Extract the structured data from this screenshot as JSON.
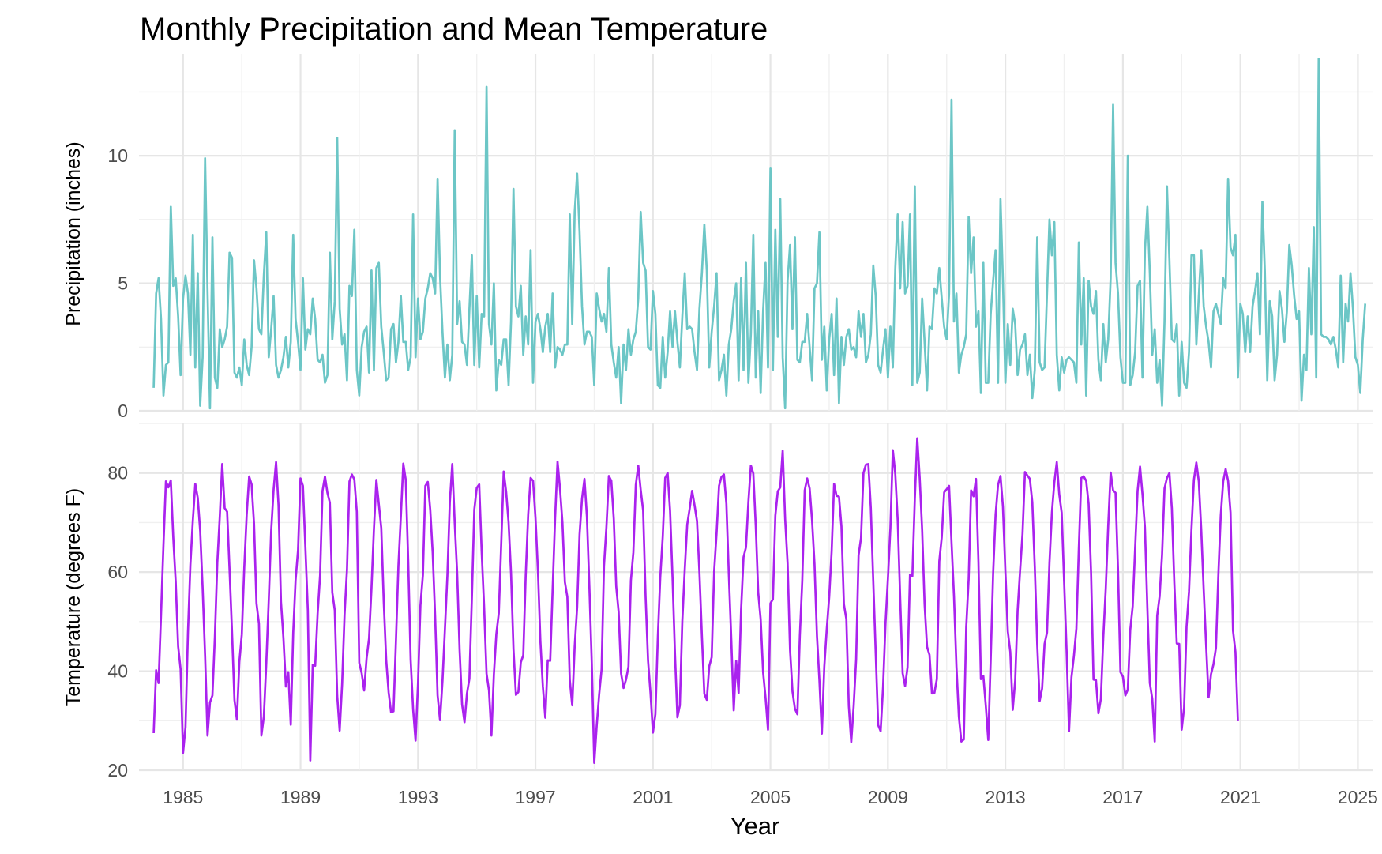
{
  "chart_data": {
    "type": "line",
    "title": "Monthly Precipitation and Mean Temperature",
    "xlabel": "Year",
    "xlim": [
      1983.5,
      2025.5
    ],
    "x_ticks": [
      1985,
      1989,
      1993,
      1997,
      2001,
      2005,
      2009,
      2013,
      2017,
      2021,
      2025
    ],
    "grid": true,
    "legend": "none",
    "panels": [
      {
        "name": "precip",
        "ylabel": "Precipitation (inches)",
        "ylim": [
          0,
          14
        ],
        "y_ticks": [
          0,
          5,
          10
        ],
        "color": "#6cc6c6",
        "series": {
          "start_year": 1984,
          "values": [
            0.9,
            4.6,
            5.2,
            3.6,
            0.6,
            1.8,
            1.9,
            8.0,
            4.9,
            5.2,
            3.7,
            1.4,
            4.4,
            5.3,
            4.6,
            2.2,
            6.9,
            1.7,
            5.4,
            0.2,
            2.1,
            9.9,
            4.7,
            0.1,
            6.8,
            1.3,
            0.9,
            3.2,
            2.5,
            2.8,
            3.3,
            6.2,
            6.0,
            1.5,
            1.3,
            1.7,
            1.0,
            2.8,
            1.8,
            1.4,
            2.5,
            5.9,
            4.8,
            3.2,
            3.0,
            5.3,
            7.0,
            2.1,
            3.2,
            4.5,
            1.8,
            1.3,
            1.6,
            2.1,
            2.9,
            1.7,
            2.7,
            6.9,
            3.6,
            2.7,
            1.6,
            5.2,
            2.4,
            3.2,
            3.0,
            4.4,
            3.6,
            2.0,
            1.9,
            2.2,
            1.1,
            1.4,
            6.2,
            2.8,
            4.3,
            10.7,
            4.0,
            2.6,
            3.0,
            1.2,
            4.9,
            4.5,
            7.1,
            1.6,
            0.6,
            2.5,
            3.1,
            3.3,
            1.5,
            5.5,
            1.6,
            5.6,
            5.8,
            3.3,
            2.3,
            1.2,
            1.3,
            3.2,
            3.4,
            1.9,
            2.7,
            4.5,
            2.7,
            2.7,
            1.6,
            2.1,
            7.7,
            2.1,
            4.4,
            2.8,
            3.1,
            4.4,
            4.8,
            5.4,
            5.2,
            4.6,
            9.1,
            5.3,
            3.1,
            1.3,
            2.6,
            1.2,
            2.2,
            11.0,
            3.4,
            4.3,
            2.7,
            2.6,
            1.8,
            4.0,
            6.1,
            1.8,
            4.5,
            1.7,
            3.8,
            3.7,
            12.7,
            3.4,
            2.6,
            5.0,
            0.8,
            2.0,
            1.8,
            2.8,
            2.8,
            1.0,
            3.5,
            8.7,
            4.1,
            3.7,
            4.9,
            2.2,
            3.7,
            2.6,
            6.3,
            1.1,
            3.5,
            3.8,
            3.2,
            2.3,
            3.3,
            3.8,
            2.3,
            4.6,
            1.7,
            2.5,
            2.4,
            2.2,
            2.6,
            2.6,
            7.7,
            3.4,
            7.8,
            9.3,
            7.0,
            4.1,
            2.6,
            3.1,
            3.1,
            2.9,
            1.0,
            4.6,
            4.0,
            3.5,
            3.8,
            3.1,
            5.6,
            2.6,
            1.9,
            1.3,
            2.5,
            0.3,
            2.6,
            1.6,
            3.2,
            2.2,
            2.8,
            3.1,
            4.4,
            7.8,
            5.8,
            5.5,
            2.5,
            2.4,
            4.7,
            3.8,
            1.0,
            0.9,
            2.9,
            1.3,
            2.3,
            3.9,
            2.5,
            3.9,
            2.7,
            1.7,
            3.7,
            5.4,
            3.2,
            3.3,
            3.2,
            2.3,
            1.6,
            4.0,
            5.4,
            7.3,
            5.5,
            1.7,
            3.1,
            4.1,
            5.4,
            1.2,
            1.6,
            2.2,
            0.6,
            2.6,
            3.2,
            4.3,
            5.0,
            1.2,
            5.2,
            1.6,
            5.8,
            1.1,
            3.0,
            6.9,
            1.3,
            3.9,
            0.7,
            3.9,
            5.8,
            1.7,
            9.5,
            1.6,
            7.1,
            2.9,
            8.3,
            2.1,
            0.1,
            5.1,
            6.5,
            3.2,
            6.8,
            2.0,
            1.9,
            2.7,
            2.7,
            3.8,
            2.5,
            1.2,
            4.8,
            5.0,
            7.0,
            2.0,
            3.3,
            0.8,
            2.8,
            3.8,
            1.4,
            4.4,
            0.3,
            2.9,
            1.8,
            2.9,
            3.2,
            2.4,
            2.5,
            2.1,
            3.9,
            2.9,
            3.8,
            1.9,
            2.2,
            3.0,
            5.7,
            4.5,
            1.8,
            1.5,
            2.4,
            3.2,
            1.3,
            3.3,
            1.7,
            5.6,
            7.7,
            4.8,
            7.4,
            4.6,
            4.9,
            7.7,
            1.0,
            8.8,
            1.1,
            1.5,
            4.4,
            2.7,
            0.8,
            3.3,
            3.2,
            4.8,
            4.6,
            5.6,
            4.4,
            3.3,
            2.8,
            4.6,
            12.2,
            3.5,
            4.6,
            1.5,
            2.2,
            2.5,
            3.0,
            7.6,
            5.4,
            6.8,
            3.3,
            3.9,
            0.7,
            5.8,
            1.1,
            1.1,
            3.8,
            5.1,
            6.3,
            1.1,
            8.3,
            5.1,
            1.1,
            3.4,
            1.8,
            4.0,
            3.4,
            1.4,
            2.4,
            2.6,
            3.0,
            1.4,
            2.2,
            0.5,
            1.6,
            6.8,
            1.9,
            1.6,
            1.7,
            4.6,
            7.5,
            6.1,
            7.4,
            2.2,
            0.8,
            2.1,
            1.5,
            2.0,
            2.1,
            2.0,
            1.9,
            1.1,
            6.6,
            2.6,
            5.2,
            0.6,
            5.1,
            4.1,
            3.8,
            4.7,
            2.0,
            1.2,
            3.4,
            1.9,
            2.8,
            5.2,
            12.0,
            5.8,
            4.6,
            2.1,
            1.1,
            1.1,
            10.0,
            1.0,
            1.4,
            2.3,
            4.9,
            5.1,
            1.3,
            6.3,
            8.0,
            5.4,
            2.2,
            3.2,
            1.1,
            2.0,
            0.2,
            3.5,
            8.8,
            5.9,
            2.8,
            2.7,
            3.4,
            0.6,
            2.7,
            1.1,
            0.9,
            2.3,
            6.1,
            6.1,
            2.6,
            4.5,
            6.3,
            4.1,
            3.3,
            2.7,
            1.7,
            3.9,
            4.2,
            3.8,
            3.4,
            5.2,
            4.8,
            9.1,
            6.4,
            6.1,
            6.9,
            1.3,
            4.2,
            3.8,
            2.3,
            3.7,
            2.3,
            4.1,
            4.7,
            5.4,
            3.0,
            8.2,
            5.5,
            1.2,
            4.3,
            3.7,
            1.2,
            2.2,
            4.7,
            4.0,
            2.7,
            3.9,
            6.5,
            5.7,
            4.5,
            3.6,
            3.9,
            0.4,
            2.2,
            1.6,
            5.6,
            3.0,
            7.2,
            1.3,
            13.8,
            3.0,
            2.9,
            2.9,
            2.8,
            2.6,
            2.9,
            2.4,
            1.7,
            5.3,
            1.9,
            4.2,
            3.5,
            5.4,
            4.0,
            2.1,
            1.8,
            0.7,
            2.8,
            4.2
          ]
        }
      },
      {
        "name": "temp",
        "ylabel": "Temperature (degrees F)",
        "ylim": [
          20,
          90
        ],
        "y_ticks": [
          20,
          40,
          60,
          80
        ],
        "color": "#aa22ee",
        "series": {
          "start_year": 1984,
          "values": [
            27.5,
            40.2,
            37.6,
            51.3,
            65.5,
            78.3,
            77.1,
            78.5,
            67.0,
            58.0,
            45.0,
            40.4,
            23.5,
            28.7,
            47.8,
            61.5,
            70.4,
            77.8,
            75.0,
            68.3,
            56.8,
            43.1,
            27.0,
            33.7,
            35.1,
            46.9,
            61.9,
            71.2,
            81.8,
            72.9,
            72.2,
            60.4,
            48.0,
            34.2,
            30.2,
            41.9,
            47.4,
            60.9,
            71.6,
            79.3,
            77.7,
            69.7,
            53.7,
            49.6,
            27.0,
            30.8,
            41.6,
            54.3,
            68.3,
            76.7,
            82.2,
            73.4,
            54.0,
            46.7,
            36.9,
            39.8,
            29.2,
            47.8,
            58.4,
            64.4,
            78.9,
            77.4,
            65.0,
            52.3,
            22.0,
            41.3,
            41.1,
            51.6,
            59.3,
            76.4,
            79.3,
            76.0,
            74.0,
            55.9,
            52.3,
            35.0,
            28.0,
            37.4,
            51.4,
            60.5,
            78.3,
            79.7,
            78.7,
            72.2,
            41.7,
            39.6,
            36.1,
            42.6,
            46.6,
            56.7,
            68.7,
            78.6,
            73.7,
            68.9,
            54.1,
            42.3,
            35.7,
            31.7,
            31.9,
            46.2,
            61.3,
            71.3,
            81.9,
            78.6,
            62.2,
            42.3,
            32.3,
            26.0,
            37.5,
            53.3,
            59.4,
            77.4,
            78.2,
            72.6,
            63.9,
            51.0,
            35.1,
            30.1,
            38.0,
            48.5,
            59.3,
            74.1,
            81.8,
            69.9,
            59.7,
            44.2,
            33.3,
            29.7,
            35.5,
            38.5,
            54.7,
            72.6,
            77.0,
            77.7,
            64.2,
            53.0,
            39.5,
            36.1,
            27.0,
            39.4,
            47.5,
            51.7,
            65.8,
            80.3,
            76.2,
            70.0,
            59.8,
            44.4,
            35.2,
            35.8,
            41.8,
            43.2,
            59.4,
            71.6,
            79.0,
            78.4,
            70.9,
            60.1,
            46.0,
            36.9,
            30.6,
            42.2,
            42.1,
            56.6,
            70.9,
            82.3,
            76.9,
            70.0,
            58.0,
            55.0,
            38.2,
            33.1,
            45.0,
            52.9,
            67.6,
            74.8,
            78.8,
            71.2,
            57.1,
            41.4,
            21.5,
            29.0,
            35.3,
            40.4,
            61.2,
            69.1,
            79.4,
            78.4,
            70.8,
            57.1,
            51.9,
            39.5,
            36.6,
            38.3,
            40.9,
            58.3,
            64.0,
            77.6,
            81.5,
            76.6,
            72.4,
            55.0,
            42.1,
            35.6,
            27.6,
            31.3,
            46.9,
            59.0,
            67.1,
            79.0,
            80.0,
            72.4,
            59.0,
            43.5,
            30.7,
            33.1,
            50.1,
            60.5,
            69.6,
            72.8,
            76.4,
            73.5,
            70.3,
            59.9,
            47.1,
            35.4,
            34.2,
            41.0,
            42.8,
            60.1,
            67.9,
            77.4,
            79.2,
            79.7,
            73.8,
            59.5,
            46.4,
            32.1,
            42.1,
            35.6,
            52.3,
            63.0,
            65.0,
            74.2,
            81.5,
            79.9,
            69.3,
            55.9,
            50.5,
            39.8,
            34.6,
            28.2,
            53.7,
            54.5,
            71.4,
            76.3,
            77.1,
            84.5,
            70.7,
            61.8,
            44.3,
            35.9,
            32.4,
            31.3,
            47.1,
            58.3,
            76.5,
            78.9,
            76.9,
            70.4,
            61.6,
            47.1,
            38.1,
            27.4,
            40.9,
            48.5,
            55.0,
            64.2,
            77.8,
            75.4,
            75.2,
            69.2,
            53.5,
            50.5,
            33.0,
            25.7,
            33.0,
            42.4,
            63.4,
            66.9,
            80.0,
            81.7,
            81.8,
            72.9,
            58.1,
            43.6,
            29.1,
            27.9,
            36.8,
            49.7,
            58.8,
            68.9,
            84.6,
            79.8,
            70.3,
            54.6,
            39.6,
            37.0,
            40.8,
            59.5,
            59.2,
            74.7,
            87.0,
            79.0,
            68.5,
            53.5,
            44.9,
            43.3,
            35.5,
            35.6,
            38.4,
            62.2,
            67.0,
            76.1,
            76.7,
            77.4,
            66.0,
            55.2,
            41.0,
            30.8,
            25.8,
            26.2,
            48.9,
            58.6,
            76.5,
            75.3,
            78.8,
            62.0,
            38.4,
            39.0,
            33.0,
            26.1,
            42.4,
            59.8,
            71.6,
            77.6,
            79.4,
            73.2,
            60.1,
            48.0,
            43.9,
            32.2,
            38.1,
            52.3,
            60.3,
            67.7,
            80.2,
            79.5,
            78.8,
            74.1,
            61.1,
            45.5,
            34.0,
            36.5,
            45.5,
            47.8,
            61.9,
            72.0,
            78.1,
            82.2,
            75.7,
            72.0,
            58.0,
            44.1,
            27.9,
            38.8,
            43.1,
            48.6,
            64.8,
            79.0,
            79.3,
            78.4,
            73.8,
            59.9,
            38.3,
            38.2,
            31.5,
            34.4,
            46.9,
            56.7,
            69.4,
            80.1,
            76.5,
            76.0,
            60.4,
            39.8,
            38.9,
            35.1,
            36.3,
            48.3,
            53.1,
            64.8,
            76.4,
            81.3,
            75.7,
            69.0,
            52.7,
            37.6,
            34.4,
            25.8,
            51.2,
            55.1,
            63.5,
            76.9,
            79.0,
            80.0,
            72.8,
            57.8,
            45.6,
            45.5,
            28.2,
            32.6,
            49.0,
            56.1,
            68.5,
            78.6,
            82.1,
            78.3,
            68.5,
            56.4,
            45.2,
            34.7,
            39.4,
            41.4,
            44.7,
            59.6,
            71.4,
            78.3,
            80.8,
            78.4,
            72.0,
            48.2,
            43.9,
            29.9
          ]
        }
      }
    ]
  }
}
